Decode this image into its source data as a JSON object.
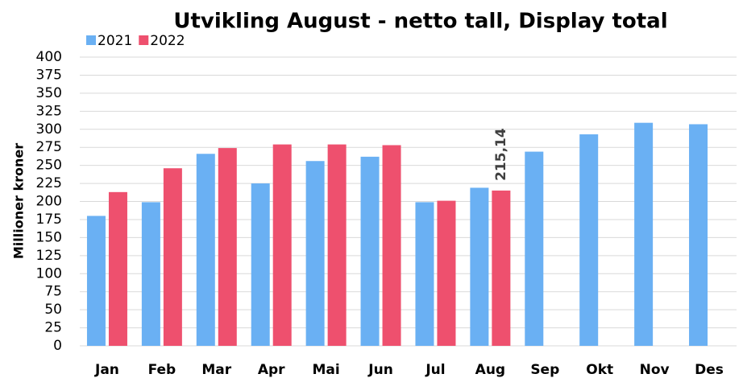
{
  "chart_data": {
    "type": "bar",
    "title": "Utvikling August - netto tall, Display total",
    "ylabel": "Millioner kroner",
    "categories": [
      "Jan",
      "Feb",
      "Mar",
      "Apr",
      "Mai",
      "Jun",
      "Jul",
      "Aug",
      "Sep",
      "Okt",
      "Nov",
      "Des"
    ],
    "series": [
      {
        "name": "2021",
        "color": "#6ab0f3",
        "values": [
          180,
          199,
          266,
          225,
          256,
          262,
          199,
          219,
          269,
          293,
          309,
          307
        ]
      },
      {
        "name": "2022",
        "color": "#ee506e",
        "values": [
          213,
          246,
          274,
          279,
          279,
          278,
          201,
          215.14,
          null,
          null,
          null,
          null
        ],
        "value_labels": [
          null,
          null,
          null,
          null,
          null,
          null,
          null,
          "215,14",
          null,
          null,
          null,
          null
        ]
      }
    ],
    "ylim": [
      0,
      400
    ],
    "yticks": [
      0,
      25,
      50,
      75,
      100,
      125,
      150,
      175,
      200,
      225,
      250,
      275,
      300,
      325,
      350,
      375,
      400
    ],
    "grid": true,
    "legend": "top-left"
  }
}
